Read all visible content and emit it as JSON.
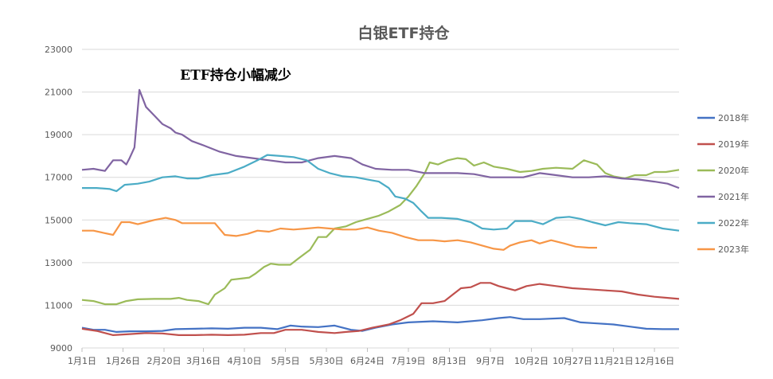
{
  "chart_data": {
    "type": "line",
    "title": "白银ETF持仓",
    "annotation": "ETF持仓小幅减少",
    "xlabel": "",
    "ylabel": "",
    "ylim": [
      9000,
      23000
    ],
    "yticks": [
      9000,
      11000,
      13000,
      15000,
      17000,
      19000,
      21000,
      23000
    ],
    "ytick_labels": [
      "9000",
      "11000",
      "13000",
      "15000",
      "17000",
      "19000",
      "21000",
      "23000"
    ],
    "x_day_range": [
      1,
      365
    ],
    "xticks": [
      {
        "day": 1,
        "label": "1月1日"
      },
      {
        "day": 26,
        "label": "1月26日"
      },
      {
        "day": 51,
        "label": "2月20日"
      },
      {
        "day": 75,
        "label": "3月16日"
      },
      {
        "day": 100,
        "label": "4月10日"
      },
      {
        "day": 125,
        "label": "5月5日"
      },
      {
        "day": 150,
        "label": "5月30日"
      },
      {
        "day": 175,
        "label": "6月24日"
      },
      {
        "day": 200,
        "label": "7月19日"
      },
      {
        "day": 225,
        "label": "8月13日"
      },
      {
        "day": 250,
        "label": "9月7日"
      },
      {
        "day": 275,
        "label": "10月2日"
      },
      {
        "day": 300,
        "label": "10月27日"
      },
      {
        "day": 325,
        "label": "11月21日"
      },
      {
        "day": 350,
        "label": "12月16日"
      }
    ],
    "grid": {
      "horizontal": true,
      "vertical": false
    },
    "legend_position": "right",
    "series": [
      {
        "name": "2018年",
        "color": "#4472C4",
        "points": [
          [
            1,
            9950
          ],
          [
            8,
            9850
          ],
          [
            15,
            9850
          ],
          [
            22,
            9750
          ],
          [
            30,
            9780
          ],
          [
            40,
            9780
          ],
          [
            50,
            9800
          ],
          [
            58,
            9880
          ],
          [
            70,
            9900
          ],
          [
            80,
            9920
          ],
          [
            90,
            9900
          ],
          [
            100,
            9950
          ],
          [
            110,
            9950
          ],
          [
            120,
            9880
          ],
          [
            128,
            10050
          ],
          [
            135,
            10000
          ],
          [
            145,
            9980
          ],
          [
            155,
            10050
          ],
          [
            165,
            9850
          ],
          [
            172,
            9800
          ],
          [
            180,
            9950
          ],
          [
            190,
            10100
          ],
          [
            200,
            10200
          ],
          [
            215,
            10250
          ],
          [
            230,
            10200
          ],
          [
            245,
            10300
          ],
          [
            255,
            10400
          ],
          [
            262,
            10450
          ],
          [
            270,
            10350
          ],
          [
            280,
            10350
          ],
          [
            295,
            10400
          ],
          [
            305,
            10200
          ],
          [
            315,
            10150
          ],
          [
            325,
            10100
          ],
          [
            335,
            10000
          ],
          [
            345,
            9900
          ],
          [
            355,
            9880
          ],
          [
            365,
            9880
          ]
        ]
      },
      {
        "name": "2019年",
        "color": "#C0504D",
        "points": [
          [
            1,
            9900
          ],
          [
            10,
            9800
          ],
          [
            20,
            9600
          ],
          [
            30,
            9650
          ],
          [
            40,
            9700
          ],
          [
            50,
            9680
          ],
          [
            60,
            9600
          ],
          [
            70,
            9600
          ],
          [
            80,
            9620
          ],
          [
            90,
            9600
          ],
          [
            100,
            9620
          ],
          [
            110,
            9700
          ],
          [
            118,
            9700
          ],
          [
            125,
            9850
          ],
          [
            135,
            9850
          ],
          [
            145,
            9750
          ],
          [
            155,
            9700
          ],
          [
            162,
            9750
          ],
          [
            170,
            9800
          ],
          [
            178,
            9950
          ],
          [
            188,
            10100
          ],
          [
            195,
            10300
          ],
          [
            203,
            10600
          ],
          [
            208,
            11100
          ],
          [
            215,
            11100
          ],
          [
            222,
            11200
          ],
          [
            227,
            11500
          ],
          [
            232,
            11800
          ],
          [
            238,
            11850
          ],
          [
            244,
            12050
          ],
          [
            250,
            12050
          ],
          [
            255,
            11900
          ],
          [
            265,
            11700
          ],
          [
            272,
            11900
          ],
          [
            280,
            12000
          ],
          [
            290,
            11900
          ],
          [
            300,
            11800
          ],
          [
            310,
            11750
          ],
          [
            320,
            11700
          ],
          [
            330,
            11650
          ],
          [
            340,
            11500
          ],
          [
            350,
            11400
          ],
          [
            358,
            11350
          ],
          [
            365,
            11300
          ]
        ]
      },
      {
        "name": "2020年",
        "color": "#9BBB59",
        "points": [
          [
            1,
            11250
          ],
          [
            8,
            11200
          ],
          [
            15,
            11050
          ],
          [
            22,
            11050
          ],
          [
            28,
            11200
          ],
          [
            35,
            11280
          ],
          [
            45,
            11300
          ],
          [
            55,
            11300
          ],
          [
            60,
            11350
          ],
          [
            65,
            11250
          ],
          [
            72,
            11200
          ],
          [
            78,
            11050
          ],
          [
            82,
            11500
          ],
          [
            88,
            11800
          ],
          [
            92,
            12200
          ],
          [
            98,
            12250
          ],
          [
            103,
            12300
          ],
          [
            107,
            12500
          ],
          [
            112,
            12800
          ],
          [
            116,
            12950
          ],
          [
            121,
            12900
          ],
          [
            128,
            12900
          ],
          [
            133,
            13200
          ],
          [
            140,
            13600
          ],
          [
            145,
            14200
          ],
          [
            150,
            14200
          ],
          [
            155,
            14600
          ],
          [
            162,
            14700
          ],
          [
            168,
            14900
          ],
          [
            175,
            15050
          ],
          [
            182,
            15200
          ],
          [
            188,
            15400
          ],
          [
            195,
            15700
          ],
          [
            200,
            16100
          ],
          [
            205,
            16600
          ],
          [
            210,
            17200
          ],
          [
            213,
            17700
          ],
          [
            218,
            17600
          ],
          [
            224,
            17800
          ],
          [
            230,
            17900
          ],
          [
            235,
            17850
          ],
          [
            240,
            17550
          ],
          [
            246,
            17700
          ],
          [
            252,
            17500
          ],
          [
            260,
            17400
          ],
          [
            268,
            17250
          ],
          [
            275,
            17300
          ],
          [
            282,
            17400
          ],
          [
            290,
            17450
          ],
          [
            300,
            17400
          ],
          [
            307,
            17800
          ],
          [
            315,
            17600
          ],
          [
            320,
            17200
          ],
          [
            325,
            17050
          ],
          [
            332,
            16950
          ],
          [
            338,
            17100
          ],
          [
            345,
            17100
          ],
          [
            350,
            17250
          ],
          [
            357,
            17250
          ],
          [
            365,
            17350
          ]
        ]
      },
      {
        "name": "2021年",
        "color": "#8064A2",
        "points": [
          [
            1,
            17350
          ],
          [
            8,
            17400
          ],
          [
            15,
            17300
          ],
          [
            20,
            17800
          ],
          [
            25,
            17800
          ],
          [
            28,
            17600
          ],
          [
            30,
            17900
          ],
          [
            33,
            18400
          ],
          [
            36,
            21100
          ],
          [
            40,
            20300
          ],
          [
            45,
            19900
          ],
          [
            50,
            19500
          ],
          [
            55,
            19300
          ],
          [
            58,
            19100
          ],
          [
            62,
            19000
          ],
          [
            68,
            18700
          ],
          [
            75,
            18500
          ],
          [
            85,
            18200
          ],
          [
            95,
            18000
          ],
          [
            105,
            17900
          ],
          [
            115,
            17800
          ],
          [
            125,
            17700
          ],
          [
            135,
            17700
          ],
          [
            145,
            17900
          ],
          [
            155,
            18000
          ],
          [
            165,
            17900
          ],
          [
            172,
            17600
          ],
          [
            180,
            17400
          ],
          [
            190,
            17350
          ],
          [
            200,
            17350
          ],
          [
            210,
            17200
          ],
          [
            220,
            17200
          ],
          [
            230,
            17200
          ],
          [
            240,
            17150
          ],
          [
            250,
            17000
          ],
          [
            260,
            17000
          ],
          [
            270,
            17000
          ],
          [
            280,
            17200
          ],
          [
            290,
            17100
          ],
          [
            300,
            17000
          ],
          [
            310,
            17000
          ],
          [
            320,
            17050
          ],
          [
            330,
            16950
          ],
          [
            340,
            16900
          ],
          [
            350,
            16800
          ],
          [
            358,
            16700
          ],
          [
            365,
            16500
          ]
        ]
      },
      {
        "name": "2022年",
        "color": "#4BACC6",
        "points": [
          [
            1,
            16500
          ],
          [
            10,
            16500
          ],
          [
            18,
            16450
          ],
          [
            22,
            16350
          ],
          [
            27,
            16650
          ],
          [
            35,
            16700
          ],
          [
            42,
            16800
          ],
          [
            50,
            17000
          ],
          [
            58,
            17050
          ],
          [
            65,
            16950
          ],
          [
            72,
            16950
          ],
          [
            80,
            17100
          ],
          [
            90,
            17200
          ],
          [
            100,
            17500
          ],
          [
            108,
            17800
          ],
          [
            114,
            18050
          ],
          [
            122,
            18000
          ],
          [
            130,
            17950
          ],
          [
            138,
            17800
          ],
          [
            145,
            17400
          ],
          [
            152,
            17200
          ],
          [
            160,
            17050
          ],
          [
            168,
            17000
          ],
          [
            175,
            16900
          ],
          [
            182,
            16800
          ],
          [
            188,
            16500
          ],
          [
            192,
            16100
          ],
          [
            198,
            16000
          ],
          [
            203,
            15800
          ],
          [
            208,
            15400
          ],
          [
            212,
            15100
          ],
          [
            220,
            15100
          ],
          [
            230,
            15050
          ],
          [
            238,
            14900
          ],
          [
            245,
            14600
          ],
          [
            252,
            14550
          ],
          [
            260,
            14600
          ],
          [
            265,
            14950
          ],
          [
            275,
            14950
          ],
          [
            282,
            14800
          ],
          [
            290,
            15100
          ],
          [
            298,
            15150
          ],
          [
            305,
            15050
          ],
          [
            312,
            14900
          ],
          [
            320,
            14750
          ],
          [
            328,
            14900
          ],
          [
            335,
            14850
          ],
          [
            345,
            14800
          ],
          [
            355,
            14600
          ],
          [
            365,
            14500
          ]
        ]
      },
      {
        "name": "2023年",
        "color": "#F79646",
        "points": [
          [
            1,
            14500
          ],
          [
            8,
            14500
          ],
          [
            14,
            14400
          ],
          [
            20,
            14300
          ],
          [
            25,
            14900
          ],
          [
            30,
            14900
          ],
          [
            35,
            14800
          ],
          [
            40,
            14900
          ],
          [
            45,
            15000
          ],
          [
            52,
            15100
          ],
          [
            58,
            15000
          ],
          [
            62,
            14850
          ],
          [
            68,
            14850
          ],
          [
            75,
            14850
          ],
          [
            82,
            14850
          ],
          [
            88,
            14300
          ],
          [
            95,
            14250
          ],
          [
            102,
            14350
          ],
          [
            108,
            14500
          ],
          [
            115,
            14450
          ],
          [
            122,
            14600
          ],
          [
            130,
            14550
          ],
          [
            138,
            14600
          ],
          [
            145,
            14650
          ],
          [
            152,
            14600
          ],
          [
            160,
            14550
          ],
          [
            168,
            14550
          ],
          [
            175,
            14650
          ],
          [
            182,
            14500
          ],
          [
            190,
            14400
          ],
          [
            198,
            14200
          ],
          [
            206,
            14050
          ],
          [
            215,
            14050
          ],
          [
            222,
            14000
          ],
          [
            230,
            14050
          ],
          [
            238,
            13950
          ],
          [
            245,
            13800
          ],
          [
            252,
            13650
          ],
          [
            258,
            13600
          ],
          [
            262,
            13800
          ],
          [
            268,
            13950
          ],
          [
            275,
            14050
          ],
          [
            280,
            13900
          ],
          [
            287,
            14050
          ],
          [
            295,
            13900
          ],
          [
            302,
            13750
          ],
          [
            310,
            13700
          ],
          [
            315,
            13700
          ]
        ]
      }
    ]
  }
}
